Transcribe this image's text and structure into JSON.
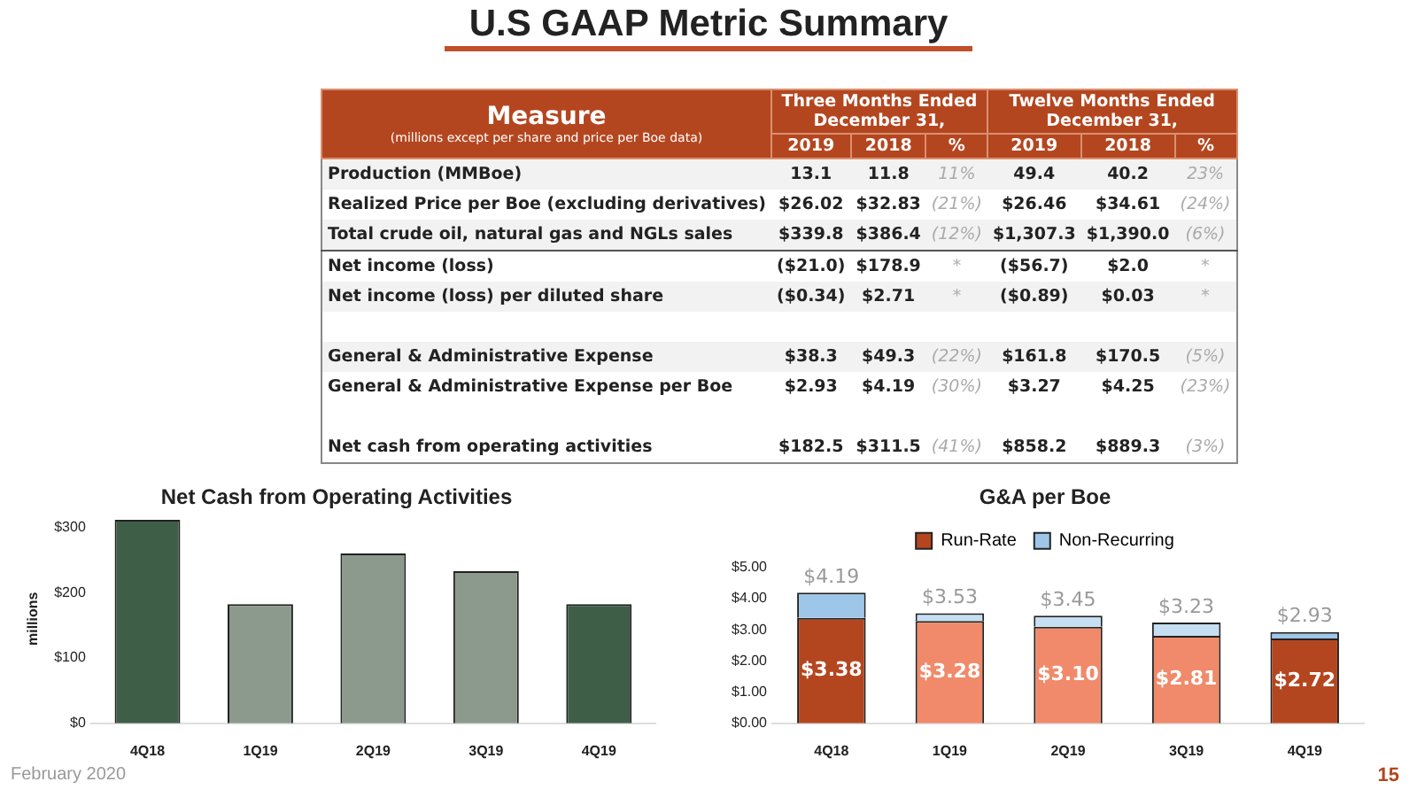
{
  "chart_data": [
    {
      "type": "other",
      "title": "U.S GAAP Metric Summary",
      "annotations": [
        "Measure",
        "(millions except per share and price per Boe data)",
        "Three Months Ended December 31,",
        "Twelve Months Ended December 31,",
        "February 2020",
        "15"
      ],
      "categories": [
        "2019",
        "2018",
        "%",
        "2019",
        "2018",
        "%"
      ],
      "y_categories": [
        "Production (MMBoe)",
        "Realized Price per Boe (excluding derivatives)",
        "Total crude oil, natural gas and NGLs sales",
        "Net income (loss)",
        "Net income (loss) per diluted share",
        null,
        "General & Administrative Expense",
        "General & Administrative Expense per Boe",
        null,
        "Net cash from operating activities"
      ],
      "cell_labels": [
        [
          "13.1",
          "11.8",
          "11%",
          "49.4",
          "40.2",
          "23%"
        ],
        [
          "$26.02",
          "$32.83",
          "(21%)",
          "$26.46",
          "$34.61",
          "(24%)"
        ],
        [
          "$339.8",
          "$386.4",
          "(12%)",
          "$1,307.3",
          "$1,390.0",
          "(6%)"
        ],
        [
          "($21.0)",
          "$178.9",
          "*",
          "($56.7)",
          "$2.0",
          "*"
        ],
        [
          "($0.34)",
          "$2.71",
          "*",
          "($0.89)",
          "$0.03",
          "*"
        ],
        [
          null,
          null,
          null,
          null,
          null,
          null
        ],
        [
          "$38.3",
          "$49.3",
          "(22%)",
          "$161.8",
          "$170.5",
          "(5%)"
        ],
        [
          "$2.93",
          "$4.19",
          "(30%)",
          "$3.27",
          "$4.25",
          "(23%)"
        ],
        [
          null,
          null,
          null,
          null,
          null,
          null
        ],
        [
          "$182.5",
          "$311.5",
          "(41%)",
          "$858.2",
          "$889.3",
          "(3%)"
        ]
      ]
    },
    {
      "type": "bar",
      "title": "Net Cash from Operating Activities",
      "ylabel": "millions",
      "categories": [
        "4Q18",
        "1Q19",
        "2Q19",
        "3Q19",
        "4Q19"
      ],
      "series": [
        {
          "values": [
            311.5,
            182.5,
            260,
            233,
            182.5
          ],
          "colors": [
            "#3e5e48",
            "#8c9a8d",
            "#8c9a8d",
            "#8c9a8d",
            "#3e5e48"
          ]
        }
      ],
      "ylim": [
        0,
        320
      ],
      "yticks": [
        {
          "value": 0,
          "label": "$0"
        },
        {
          "value": 100,
          "label": "$100"
        },
        {
          "value": 200,
          "label": "$200"
        },
        {
          "value": 300,
          "label": "$300"
        }
      ]
    },
    {
      "type": "bar",
      "title": "G&A per Boe",
      "stacked": true,
      "legend": "top",
      "categories": [
        "4Q18",
        "1Q19",
        "2Q19",
        "3Q19",
        "4Q19"
      ],
      "series": [
        {
          "name": "Run-Rate",
          "color": "#b4461f",
          "colors": [
            "#b4461f",
            "#f08a6a",
            "#f08a6a",
            "#f08a6a",
            "#b4461f"
          ],
          "values": [
            3.38,
            3.28,
            3.1,
            2.81,
            2.72
          ],
          "value_labels": [
            "$3.38",
            "$3.28",
            "$3.10",
            "$2.81",
            "$2.72"
          ]
        },
        {
          "name": "Non-Recurring",
          "color": "#9dc6e8",
          "colors": [
            "#9dc6e8",
            "#c6def2",
            "#c6def2",
            "#c6def2",
            "#9dc6e8"
          ],
          "values": [
            0.81,
            0.25,
            0.35,
            0.42,
            0.21
          ]
        }
      ],
      "totals": [
        "$4.19",
        "$3.53",
        "$3.45",
        "$3.23",
        "$2.93"
      ],
      "ylim": [
        0,
        5
      ],
      "yticks": [
        {
          "value": 0,
          "label": "$0.00"
        },
        {
          "value": 1,
          "label": "$1.00"
        },
        {
          "value": 2,
          "label": "$2.00"
        },
        {
          "value": 3,
          "label": "$3.00"
        },
        {
          "value": 4,
          "label": "$4.00"
        },
        {
          "value": 5,
          "label": "$5.00"
        }
      ]
    }
  ]
}
